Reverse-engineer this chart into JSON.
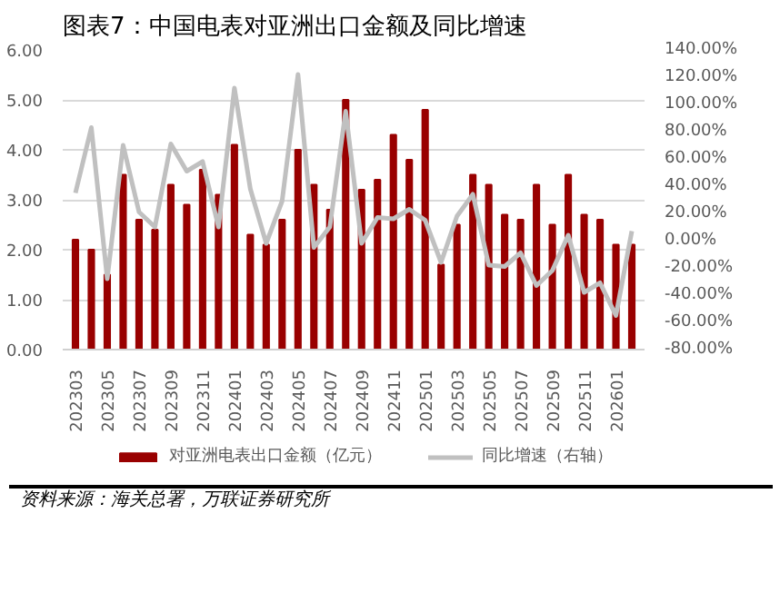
{
  "chart_data": {
    "type": "bar",
    "title": "图表7：中国电表对亚洲出口金额及同比增速",
    "categories": [
      "202303",
      null,
      "202305",
      null,
      "202307",
      null,
      "202309",
      null,
      "202311",
      null,
      "202401",
      null,
      "202403",
      null,
      "202405",
      null,
      "202407",
      null,
      "202409",
      null,
      "202411",
      null,
      "202501",
      null,
      "202503",
      null,
      "202505",
      null,
      "202507",
      null,
      "202509",
      null,
      "202511",
      null,
      "202601",
      null
    ],
    "series": [
      {
        "name": "对亚洲电表出口金额（亿元）",
        "type": "bar",
        "color": "#990000",
        "values": [
          2.2,
          2.0,
          1.5,
          3.5,
          2.6,
          2.4,
          3.3,
          2.9,
          3.6,
          3.1,
          4.1,
          2.3,
          2.1,
          2.6,
          4.0,
          3.3,
          2.8,
          5.0,
          3.2,
          3.4,
          4.3,
          3.8,
          4.8,
          1.7,
          2.5,
          3.5,
          3.3,
          2.7,
          2.6,
          3.3,
          2.5,
          3.5,
          2.7,
          2.6,
          2.1,
          2.1
        ]
      },
      {
        "name": "同比增速（右轴）",
        "type": "line",
        "axis": "y2",
        "color": "#c0c0c0",
        "values": [
          35,
          83,
          -28,
          70,
          21,
          10,
          71,
          51,
          58,
          10,
          112,
          38,
          -2,
          29,
          122,
          -5,
          10,
          95,
          -2,
          17,
          16,
          23,
          15,
          -16,
          18,
          34,
          -18,
          -19,
          -9,
          -33,
          -22,
          4,
          -38,
          -31,
          -55,
          7
        ]
      }
    ],
    "ylim": [
      0,
      6
    ],
    "yticks": [
      {
        "value": 0,
        "label": "0.00"
      },
      {
        "value": 1,
        "label": "1.00"
      },
      {
        "value": 2,
        "label": "2.00"
      },
      {
        "value": 3,
        "label": "3.00"
      },
      {
        "value": 4,
        "label": "4.00"
      },
      {
        "value": 5,
        "label": "5.00"
      },
      {
        "value": 6,
        "label": "6.00"
      }
    ],
    "y2lim": [
      -80,
      140
    ],
    "y2ticks": [
      {
        "value": -80,
        "label": "-80.00%"
      },
      {
        "value": -60,
        "label": "-60.00%"
      },
      {
        "value": -40,
        "label": "-40.00%"
      },
      {
        "value": -20,
        "label": "-20.00%"
      },
      {
        "value": 0,
        "label": "0.00%"
      },
      {
        "value": 20,
        "label": "20.00%"
      },
      {
        "value": 40,
        "label": "40.00%"
      },
      {
        "value": 60,
        "label": "60.00%"
      },
      {
        "value": 80,
        "label": "80.00%"
      },
      {
        "value": 100,
        "label": "100.00%"
      },
      {
        "value": 120,
        "label": "120.00%"
      },
      {
        "value": 140,
        "label": "140.00%"
      }
    ],
    "grid": "y",
    "legend": "bottom",
    "annotations": [
      "资料来源：海关总署，万联证券研究所"
    ]
  }
}
